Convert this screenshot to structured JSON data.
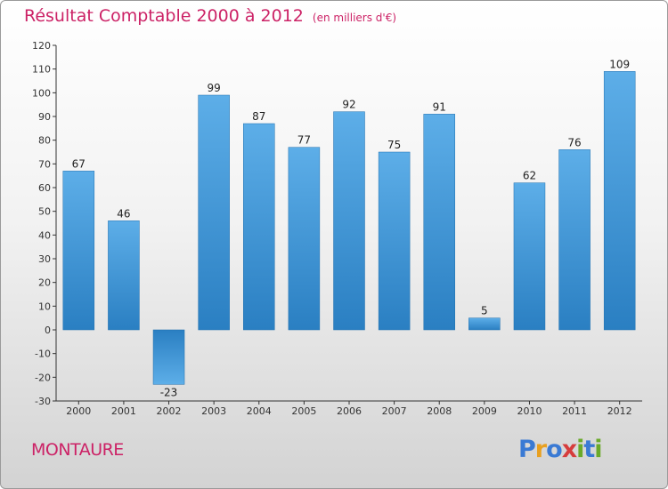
{
  "title": {
    "main": "Résultat Comptable 2000 à 2012",
    "unit": "(en milliers d'€)"
  },
  "commune": "MONTAURE",
  "brand": {
    "letters": [
      "P",
      "r",
      "o",
      "x",
      "i",
      "t",
      "i"
    ],
    "colors": [
      "#3a7ad4",
      "#e8a020",
      "#3a7ad4",
      "#d63c3c",
      "#6aaa2a",
      "#3a7ad4",
      "#6aaa2a"
    ]
  },
  "colors": {
    "title": "#cc2266",
    "bar_light": "#5daee8",
    "bar_dark": "#2a7fc2",
    "axis": "#333333"
  },
  "chart_data": {
    "type": "bar",
    "categories": [
      "2000",
      "2001",
      "2002",
      "2003",
      "2004",
      "2005",
      "2006",
      "2007",
      "2008",
      "2009",
      "2010",
      "2011",
      "2012"
    ],
    "values": [
      67,
      46,
      -23,
      99,
      87,
      77,
      92,
      75,
      91,
      5,
      62,
      76,
      109
    ],
    "data_labels": [
      "67",
      "46",
      "-23",
      "99",
      "87",
      "77",
      "92",
      "75",
      "91",
      "5",
      "62",
      "76",
      "109"
    ],
    "ylim": [
      -30,
      120
    ],
    "yticks": [
      -30,
      -20,
      -10,
      0,
      10,
      20,
      30,
      40,
      50,
      60,
      70,
      80,
      90,
      100,
      110,
      120
    ],
    "grid": false,
    "title": "Résultat Comptable 2000 à 2012",
    "xlabel": "",
    "ylabel": ""
  }
}
